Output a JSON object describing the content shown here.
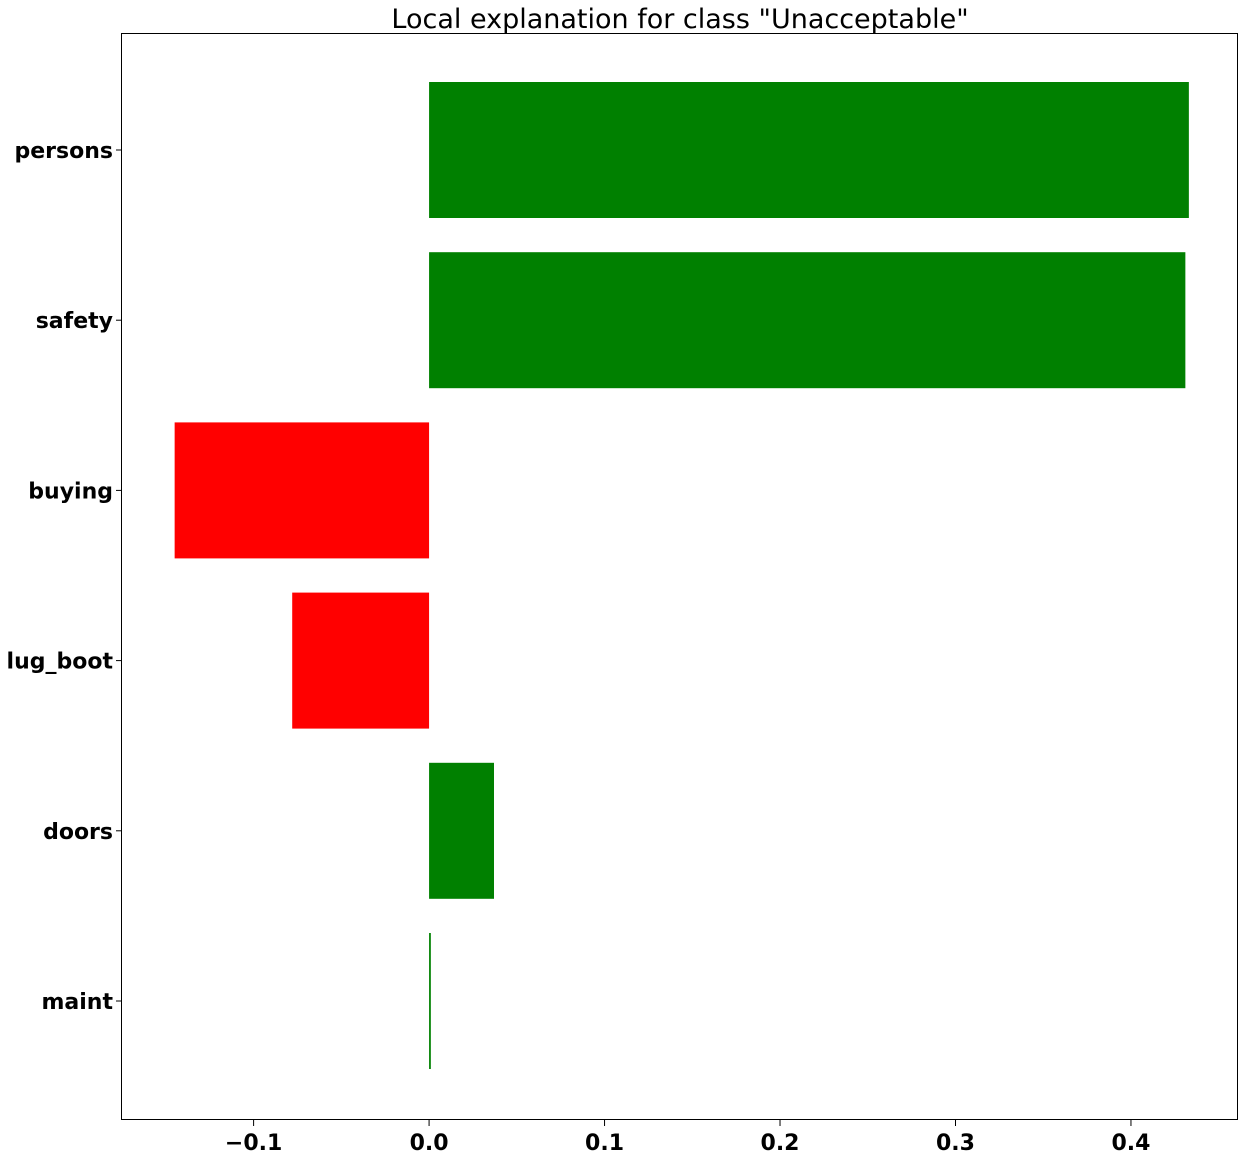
{
  "chart_data": {
    "type": "bar",
    "orientation": "horizontal",
    "title": "Local explanation for class \"Unacceptable\"",
    "xlabel": "",
    "ylabel": "",
    "categories": [
      "persons",
      "safety",
      "buying",
      "lug_boot",
      "doors",
      "maint"
    ],
    "values": [
      0.433,
      0.431,
      -0.145,
      -0.078,
      0.037,
      0.001
    ],
    "xlim": [
      -0.175,
      0.461
    ],
    "xticks": [
      -0.1,
      0.0,
      0.1,
      0.2,
      0.3,
      0.4
    ],
    "xtick_labels": [
      "−0.1",
      "0.0",
      "0.1",
      "0.2",
      "0.3",
      "0.4"
    ],
    "grid": false,
    "colors": {
      "positive": "#008000",
      "negative": "#ff0000"
    }
  }
}
